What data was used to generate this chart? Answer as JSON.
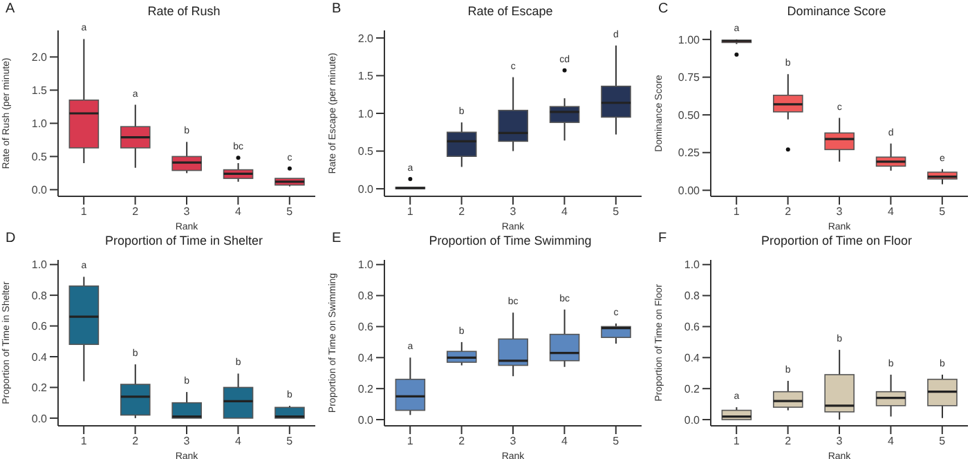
{
  "chart_data": [
    {
      "type": "box",
      "title": "Rate of Rush",
      "xlabel": "Rank",
      "ylabel": "Rate of Rush (per minute)",
      "categories": [
        "1",
        "2",
        "3",
        "4",
        "5"
      ],
      "color": "#d83a50",
      "ylim": [
        -0.1,
        2.4
      ],
      "yticks": [
        {
          "value": 0,
          "label": "0.0"
        },
        {
          "value": 0.5,
          "label": "0.5"
        },
        {
          "value": 1,
          "label": "1.0"
        },
        {
          "value": 1.5,
          "label": "1.5"
        },
        {
          "value": 2,
          "label": "2.0"
        }
      ],
      "boxes": [
        {
          "low": 0.4,
          "q1": 0.63,
          "median": 1.15,
          "q3": 1.35,
          "high": 2.27
        },
        {
          "low": 0.33,
          "q1": 0.63,
          "median": 0.79,
          "q3": 0.95,
          "high": 1.28
        },
        {
          "low": 0.25,
          "q1": 0.29,
          "median": 0.41,
          "q3": 0.5,
          "high": 0.72
        },
        {
          "low": 0.12,
          "q1": 0.17,
          "median": 0.24,
          "q3": 0.3,
          "high": 0.4,
          "outliers": [
            0.48
          ]
        },
        {
          "low": 0.05,
          "q1": 0.07,
          "median": 0.12,
          "q3": 0.17,
          "high": 0.17,
          "outliers": [
            0.32
          ]
        }
      ],
      "annotations": [
        "A",
        "a",
        "a",
        "b",
        "bc",
        "c"
      ]
    },
    {
      "type": "box",
      "title": "Rate of Escape",
      "xlabel": "Rank",
      "ylabel": "Rate of Escape (per minute)",
      "categories": [
        "1",
        "2",
        "3",
        "4",
        "5"
      ],
      "color": "#263558",
      "ylim": [
        -0.1,
        2.1
      ],
      "yticks": [
        {
          "value": 0,
          "label": "0.0"
        },
        {
          "value": 0.5,
          "label": "0.5"
        },
        {
          "value": 1,
          "label": "1.0"
        },
        {
          "value": 1.5,
          "label": "1.5"
        },
        {
          "value": 2,
          "label": "2.0"
        }
      ],
      "boxes": [
        {
          "low": 0,
          "q1": 0,
          "median": 0.01,
          "q3": 0.02,
          "high": 0.02,
          "outliers": [
            0.13
          ]
        },
        {
          "low": 0.29,
          "q1": 0.43,
          "median": 0.63,
          "q3": 0.75,
          "high": 0.88
        },
        {
          "low": 0.5,
          "q1": 0.63,
          "median": 0.74,
          "q3": 1.04,
          "high": 1.48
        },
        {
          "low": 0.64,
          "q1": 0.88,
          "median": 1.02,
          "q3": 1.09,
          "high": 1.2,
          "outliers": [
            1.57
          ]
        },
        {
          "low": 0.72,
          "q1": 0.95,
          "median": 1.14,
          "q3": 1.36,
          "high": 1.9
        }
      ],
      "annotations": [
        "B",
        "a",
        "b",
        "c",
        "cd",
        "d"
      ]
    },
    {
      "type": "box",
      "title": "Dominance Score",
      "xlabel": "Rank",
      "ylabel": "Dominance Score",
      "categories": [
        "1",
        "2",
        "3",
        "4",
        "5"
      ],
      "color": "#ef5a5a",
      "ylim": [
        -0.04,
        1.06
      ],
      "yticks": [
        {
          "value": 0,
          "label": "0.00"
        },
        {
          "value": 0.25,
          "label": "0.25"
        },
        {
          "value": 0.5,
          "label": "0.50"
        },
        {
          "value": 0.75,
          "label": "0.75"
        },
        {
          "value": 1,
          "label": "1.00"
        }
      ],
      "boxes": [
        {
          "low": 0.97,
          "q1": 0.98,
          "median": 0.99,
          "q3": 0.995,
          "high": 1.0,
          "outliers": [
            0.9
          ]
        },
        {
          "low": 0.47,
          "q1": 0.52,
          "median": 0.57,
          "q3": 0.63,
          "high": 0.77,
          "outliers": [
            0.27
          ]
        },
        {
          "low": 0.19,
          "q1": 0.27,
          "median": 0.34,
          "q3": 0.38,
          "high": 0.48
        },
        {
          "low": 0.13,
          "q1": 0.16,
          "median": 0.19,
          "q3": 0.22,
          "high": 0.31
        },
        {
          "low": 0.04,
          "q1": 0.075,
          "median": 0.09,
          "q3": 0.12,
          "high": 0.14
        }
      ],
      "annotations": [
        "C",
        "a",
        "b",
        "c",
        "d",
        "e"
      ]
    },
    {
      "type": "box",
      "title": "Proportion of Time in Shelter",
      "xlabel": "Rank",
      "ylabel": "Proportion of Time in Shelter",
      "categories": [
        "1",
        "2",
        "3",
        "4",
        "5"
      ],
      "color": "#1e6a8a",
      "ylim": [
        -0.05,
        1.03
      ],
      "yticks": [
        {
          "value": 0,
          "label": "0.0"
        },
        {
          "value": 0.2,
          "label": "0.2"
        },
        {
          "value": 0.4,
          "label": "0.4"
        },
        {
          "value": 0.6,
          "label": "0.6"
        },
        {
          "value": 0.8,
          "label": "0.8"
        },
        {
          "value": 1,
          "label": "1.0"
        }
      ],
      "boxes": [
        {
          "low": 0.24,
          "q1": 0.48,
          "median": 0.66,
          "q3": 0.86,
          "high": 0.92
        },
        {
          "low": 0,
          "q1": 0.02,
          "median": 0.14,
          "q3": 0.22,
          "high": 0.35
        },
        {
          "low": 0,
          "q1": 0,
          "median": 0.01,
          "q3": 0.1,
          "high": 0.17
        },
        {
          "low": 0,
          "q1": 0,
          "median": 0.11,
          "q3": 0.2,
          "high": 0.29
        },
        {
          "low": 0,
          "q1": 0,
          "median": 0.01,
          "q3": 0.07,
          "high": 0.08
        }
      ],
      "annotations": [
        "D",
        "a",
        "b",
        "b",
        "b",
        "b"
      ]
    },
    {
      "type": "box",
      "title": "Proportion of Time Swimming",
      "xlabel": "Rank",
      "ylabel": "Proportion of Time on Swimming",
      "categories": [
        "1",
        "2",
        "3",
        "4",
        "5"
      ],
      "color": "#5b87bf",
      "ylim": [
        -0.04,
        1.03
      ],
      "yticks": [
        {
          "value": 0,
          "label": "0.0"
        },
        {
          "value": 0.2,
          "label": "0.2"
        },
        {
          "value": 0.4,
          "label": "0.4"
        },
        {
          "value": 0.6,
          "label": "0.6"
        },
        {
          "value": 0.8,
          "label": "0.8"
        },
        {
          "value": 1,
          "label": "1.0"
        }
      ],
      "boxes": [
        {
          "low": 0.03,
          "q1": 0.06,
          "median": 0.15,
          "q3": 0.26,
          "high": 0.4
        },
        {
          "low": 0.35,
          "q1": 0.37,
          "median": 0.4,
          "q3": 0.44,
          "high": 0.5
        },
        {
          "low": 0.28,
          "q1": 0.35,
          "median": 0.38,
          "q3": 0.52,
          "high": 0.69
        },
        {
          "low": 0.34,
          "q1": 0.38,
          "median": 0.43,
          "q3": 0.55,
          "high": 0.71
        },
        {
          "low": 0.49,
          "q1": 0.53,
          "median": 0.59,
          "q3": 0.6,
          "high": 0.62
        }
      ],
      "annotations": [
        "E",
        "a",
        "b",
        "bc",
        "bc",
        "c"
      ]
    },
    {
      "type": "box",
      "title": "Proportion of Time on Floor",
      "xlabel": "Rank",
      "ylabel": "Proportion of Time on Floor",
      "categories": [
        "1",
        "2",
        "3",
        "4",
        "5"
      ],
      "color": "#d4c9b0",
      "ylim": [
        -0.04,
        1.03
      ],
      "yticks": [
        {
          "value": 0,
          "label": "0.0"
        },
        {
          "value": 0.2,
          "label": "0.2"
        },
        {
          "value": 0.4,
          "label": "0.4"
        },
        {
          "value": 0.6,
          "label": "0.6"
        },
        {
          "value": 0.8,
          "label": "0.8"
        },
        {
          "value": 1,
          "label": "1.0"
        }
      ],
      "boxes": [
        {
          "low": 0,
          "q1": 0,
          "median": 0.02,
          "q3": 0.06,
          "high": 0.08
        },
        {
          "low": 0.06,
          "q1": 0.08,
          "median": 0.12,
          "q3": 0.18,
          "high": 0.25
        },
        {
          "low": 0,
          "q1": 0.05,
          "median": 0.09,
          "q3": 0.29,
          "high": 0.45
        },
        {
          "low": 0.02,
          "q1": 0.09,
          "median": 0.14,
          "q3": 0.18,
          "high": 0.29
        },
        {
          "low": 0.01,
          "q1": 0.09,
          "median": 0.18,
          "q3": 0.26,
          "high": 0.29
        }
      ],
      "annotations": [
        "F",
        "a",
        "b",
        "b",
        "b",
        "b"
      ]
    }
  ]
}
